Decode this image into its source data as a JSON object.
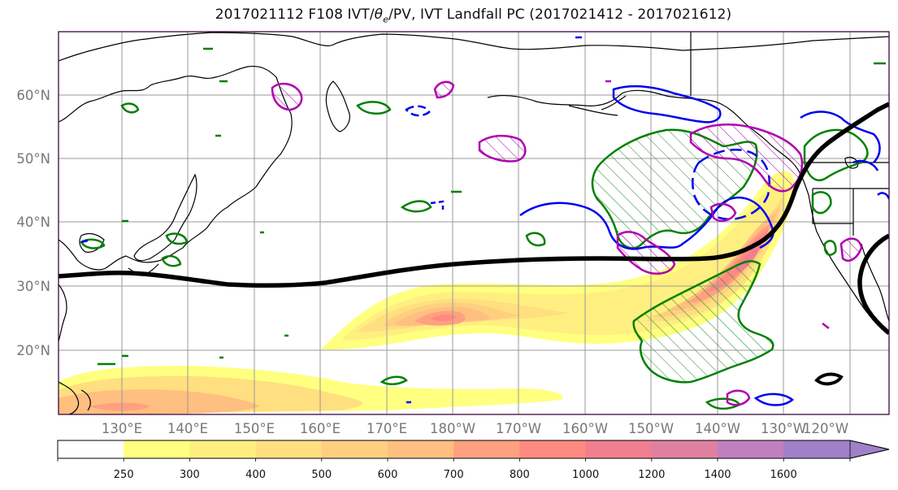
{
  "title": {
    "pre": "2017021112 F108 IVT/",
    "theta": "θ",
    "theta_sub": "e",
    "post": "/PV, IVT Landfall PC (2017021412 - 2017021612)"
  },
  "map": {
    "lat_labels": [
      "60°N",
      "50°N",
      "40°N",
      "30°N",
      "20°N"
    ],
    "lon_labels": [
      "130°E",
      "140°E",
      "150°E",
      "160°E",
      "170°E",
      "180°W",
      "170°W",
      "160°W",
      "150°W",
      "140°W",
      "130°W",
      "120°W"
    ],
    "colors": {
      "coast": "#000000",
      "grid": "#9a9a9a",
      "theta_e": "#008000",
      "pv_positive": "#0000ff",
      "pv_negative": "#0000ff",
      "landfall_pc": "#b000b0",
      "pc_zero_line": "#000000"
    }
  },
  "colorbar": {
    "tick_labels": [
      "250",
      "300",
      "400",
      "500",
      "600",
      "700",
      "800",
      "1000",
      "1200",
      "1400",
      "1600"
    ],
    "levels": [
      {
        "value": "250",
        "color": "#ffff80"
      },
      {
        "value": "300",
        "color": "#ffef80"
      },
      {
        "value": "400",
        "color": "#ffdf80"
      },
      {
        "value": "500",
        "color": "#ffcf80"
      },
      {
        "value": "600",
        "color": "#ffbf80"
      },
      {
        "value": "700",
        "color": "#ffa080"
      },
      {
        "value": "800",
        "color": "#ff8a80"
      },
      {
        "value": "1000",
        "color": "#f07f90"
      },
      {
        "value": "1200",
        "color": "#e0809f"
      },
      {
        "value": "1400",
        "color": "#c080c0"
      },
      {
        "value": "1600",
        "color": "#a080c8"
      }
    ],
    "below_min_color": "#ffffff"
  }
}
